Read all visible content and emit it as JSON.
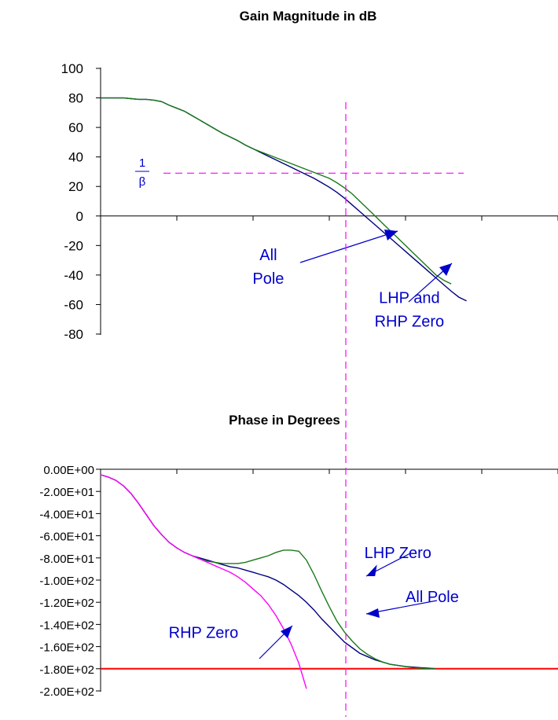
{
  "chart_data": [
    {
      "type": "line",
      "title": "Gain Magnitude in dB",
      "xlabel": "",
      "ylabel": "",
      "ylim": [
        -80,
        100
      ],
      "yticks": [
        "100",
        "80",
        "60",
        "40",
        "20",
        "0",
        "-20",
        "-40",
        "-60",
        "-80"
      ],
      "x": [
        0,
        0.1,
        0.2,
        0.3,
        0.4,
        0.5,
        0.6,
        0.7,
        0.8,
        0.9,
        1.0,
        1.1,
        1.2,
        1.3,
        1.4,
        1.5,
        1.6,
        1.7,
        1.8,
        1.9,
        2.0,
        2.1,
        2.2,
        2.3,
        2.4,
        2.5,
        2.6,
        2.7,
        2.8,
        2.9,
        3.0,
        3.1,
        3.2,
        3.3,
        3.4,
        3.5,
        3.6,
        3.7,
        3.8,
        3.9,
        4.0,
        4.1,
        4.2,
        4.3,
        4.4,
        4.5,
        4.6,
        4.7,
        4.8,
        4.9,
        5.0
      ],
      "series": [
        {
          "name": "All Pole",
          "color": "#000080",
          "values": [
            80,
            80,
            80,
            80,
            79.5,
            79,
            79,
            78.5,
            77.5,
            75,
            73,
            71,
            68,
            65,
            62,
            59,
            56,
            53.5,
            51,
            48,
            45.5,
            43,
            40.5,
            38,
            35.5,
            33,
            30.5,
            28,
            25.5,
            22.5,
            19.5,
            16,
            12,
            7.5,
            3,
            -1.5,
            -6,
            -10.5,
            -15,
            -19.5,
            -24,
            -28.5,
            -33,
            -37.5,
            -42,
            -46.5,
            -51,
            -55,
            -57.5,
            null,
            null
          ]
        },
        {
          "name": "LHP and RHP Zero",
          "color": "#1a7a1a",
          "values": [
            80,
            80,
            80,
            80,
            79.5,
            79,
            79,
            78.5,
            77.5,
            75,
            73,
            71,
            68,
            65,
            62,
            59,
            56,
            53.5,
            51,
            48,
            45.5,
            43.5,
            41.5,
            39.5,
            37.5,
            35.5,
            33.5,
            31.5,
            29.5,
            27.5,
            25.5,
            22.5,
            19,
            15,
            10,
            5,
            0,
            -5,
            -10,
            -15,
            -20,
            -25,
            -30,
            -35,
            -40,
            -43.5,
            -46,
            null,
            null,
            null,
            null
          ]
        }
      ],
      "reference_lines": {
        "horizontal_level": 29,
        "vertical_x": 2.7
      },
      "annotations": [
        {
          "text": "All",
          "x": 2.2,
          "y": -30
        },
        {
          "text": "Pole",
          "x": 2.2,
          "y": -46
        },
        {
          "text": "LHP and",
          "x": 4.05,
          "y": -59
        },
        {
          "text": "RHP Zero",
          "x": 4.05,
          "y": -75
        }
      ],
      "beta_label": {
        "numerator": "1",
        "denominator": "β"
      }
    },
    {
      "type": "line",
      "title": "Phase in Degrees",
      "xlabel": "",
      "ylabel": "",
      "ylim": [
        -200,
        0
      ],
      "yticks": [
        "0.00E+00",
        "-2.00E+01",
        "-4.00E+01",
        "-6.00E+01",
        "-8.00E+01",
        "-1.00E+02",
        "-1.20E+02",
        "-1.40E+02",
        "-1.60E+02",
        "-1.80E+02",
        "-2.00E+02"
      ],
      "x": [
        0,
        0.1,
        0.2,
        0.3,
        0.4,
        0.5,
        0.6,
        0.7,
        0.8,
        0.9,
        1.0,
        1.1,
        1.2,
        1.3,
        1.4,
        1.5,
        1.6,
        1.7,
        1.8,
        1.9,
        2.0,
        2.1,
        2.2,
        2.3,
        2.4,
        2.5,
        2.6,
        2.7,
        2.8,
        2.9,
        3.0,
        3.1,
        3.2,
        3.3,
        3.4,
        3.5,
        3.6,
        3.7,
        3.8,
        3.9,
        4.0,
        4.1,
        4.2,
        4.3,
        4.4,
        4.5,
        4.6,
        4.7,
        4.8,
        4.9,
        5.0
      ],
      "series": [
        {
          "name": "All Pole",
          "color": "#000080",
          "values": [
            -5,
            -7,
            -10,
            -15,
            -22,
            -31,
            -41,
            -51,
            -59,
            -66,
            -71,
            -75,
            -78,
            -80,
            -82,
            -84,
            -86,
            -88,
            -89,
            -91,
            -93,
            -95,
            -97,
            -100,
            -104,
            -109,
            -114,
            -120,
            -127,
            -135,
            -142,
            -149,
            -156,
            -161,
            -166,
            -169,
            -172,
            -174,
            -176,
            -177,
            -178,
            -178.5,
            -179,
            -179.5,
            -180,
            null,
            null,
            null,
            null,
            null,
            null
          ]
        },
        {
          "name": "LHP Zero",
          "color": "#1a7a1a",
          "values": [
            -5,
            -7,
            -10,
            -15,
            -22,
            -31,
            -41,
            -51,
            -59,
            -66,
            -71,
            -75,
            -78,
            -81,
            -83,
            -84,
            -85,
            -85,
            -85,
            -84,
            -82,
            -80,
            -78,
            -75,
            -73,
            -73,
            -74,
            -82,
            -95,
            -110,
            -124,
            -137,
            -147,
            -155,
            -162,
            -167,
            -171,
            -174,
            -176,
            -177,
            -178,
            -179,
            -179.5,
            -180,
            -180,
            null,
            null,
            null,
            null,
            null,
            null
          ]
        },
        {
          "name": "RHP Zero",
          "color": "#ff00ff",
          "values": [
            -5,
            -7,
            -10,
            -15,
            -22,
            -31,
            -41,
            -51,
            -59,
            -66,
            -71,
            -75,
            -78,
            -81,
            -84,
            -87,
            -90,
            -93,
            -97,
            -102,
            -108,
            -114,
            -122,
            -132,
            -144,
            -158,
            -175,
            -198,
            null,
            null,
            null,
            null,
            null,
            null,
            null,
            null,
            null,
            null,
            null,
            null,
            null,
            null,
            null,
            null,
            null,
            null,
            null,
            null,
            null,
            null,
            null
          ]
        }
      ],
      "reference_lines": {
        "horizontal_level": -180
      },
      "annotations": [
        {
          "text": "LHP Zero",
          "x": 3.9,
          "y": -80
        },
        {
          "text": "All Pole",
          "x": 4.35,
          "y": -120
        },
        {
          "text": "RHP Zero",
          "x": 1.35,
          "y": -152
        }
      ]
    }
  ]
}
